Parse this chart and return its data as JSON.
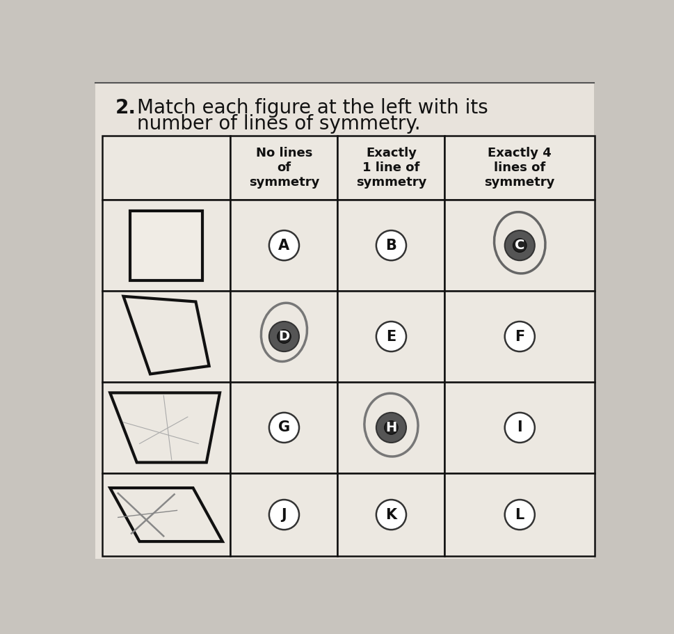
{
  "title_num": "2.",
  "title_text": "Match each figure at the left with its\nnumber of lines of symmetry.",
  "col_headers": [
    "No lines\nof\nsymmetry",
    "Exactly\n1 line of\nsymmetry",
    "Exactly 4\nlines of\nsymmetry"
  ],
  "bg_color": "#c8c4be",
  "page_color": "#e8e3dc",
  "cell_color": "#ece8e1",
  "grid_color": "#111111",
  "text_color": "#111111"
}
